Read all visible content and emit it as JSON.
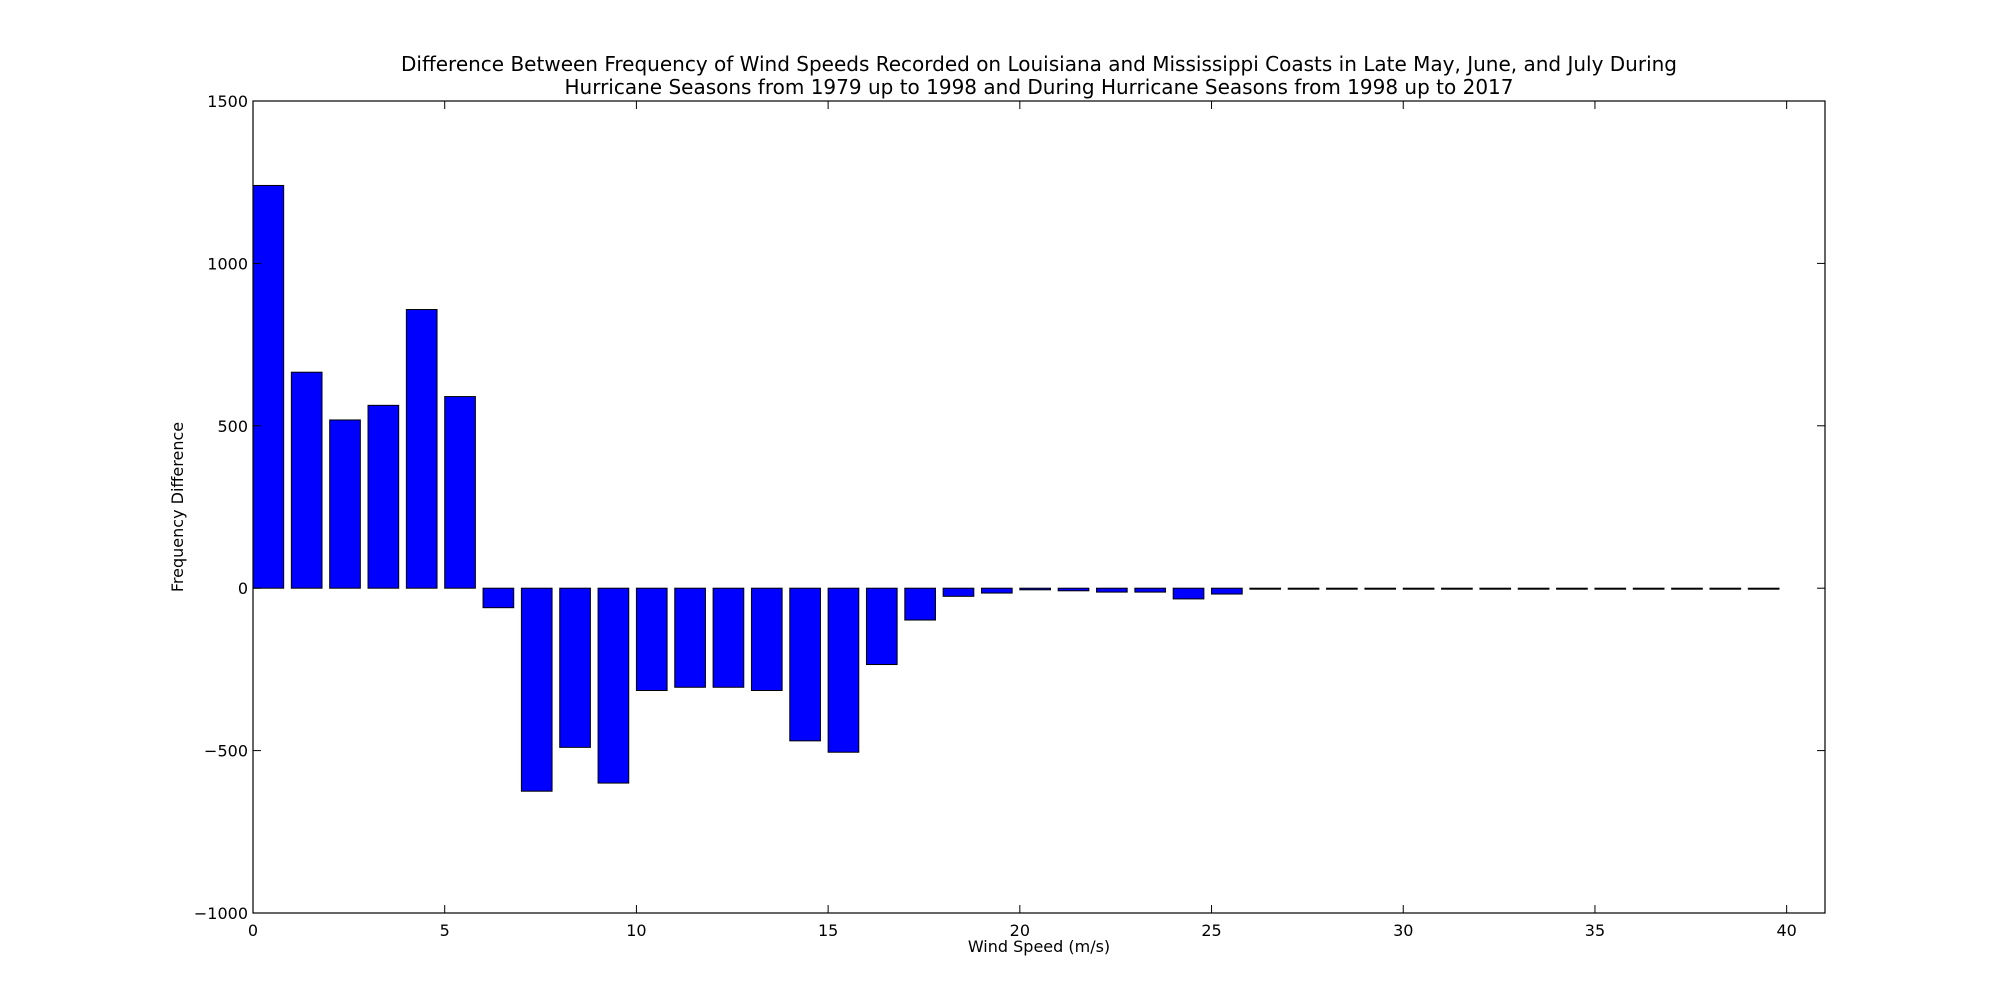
{
  "chart_data": {
    "type": "bar",
    "title_lines": [
      "Difference Between Frequency of Wind Speeds Recorded on Louisiana and Mississippi Coasts in Late May, June, and July During",
      "Hurricane Seasons from 1979 up to 1998 and During Hurricane Seasons from 1998 up to 2017"
    ],
    "xlabel": "Wind Speed (m/s)",
    "ylabel": "Frequency Difference",
    "xlim": [
      0,
      41
    ],
    "ylim": [
      -1000,
      1500
    ],
    "xticks": [
      "0",
      "5",
      "10",
      "15",
      "20",
      "25",
      "30",
      "35",
      "40"
    ],
    "yticks": [
      "1500",
      "1000",
      "500",
      "0",
      "−500",
      "−1000"
    ],
    "grid": false,
    "bar_color": "#0000ff",
    "x": [
      0,
      1,
      2,
      3,
      4,
      5,
      6,
      7,
      8,
      9,
      10,
      11,
      12,
      13,
      14,
      15,
      16,
      17,
      18,
      19,
      20,
      21,
      22,
      23,
      24,
      25,
      26,
      27,
      28,
      29,
      30,
      31,
      32,
      33,
      34,
      35,
      36,
      37,
      38,
      39
    ],
    "values": [
      1240,
      665,
      518,
      563,
      858,
      590,
      -60,
      -625,
      -490,
      -600,
      -315,
      -305,
      -305,
      -315,
      -470,
      -505,
      -235,
      -98,
      -25,
      -15,
      -5,
      -8,
      -12,
      -12,
      -33,
      -18,
      -3,
      -1,
      -1,
      -1,
      -1,
      -1,
      -1,
      -1,
      -1,
      -1,
      -1,
      -1,
      -1,
      -1
    ]
  }
}
